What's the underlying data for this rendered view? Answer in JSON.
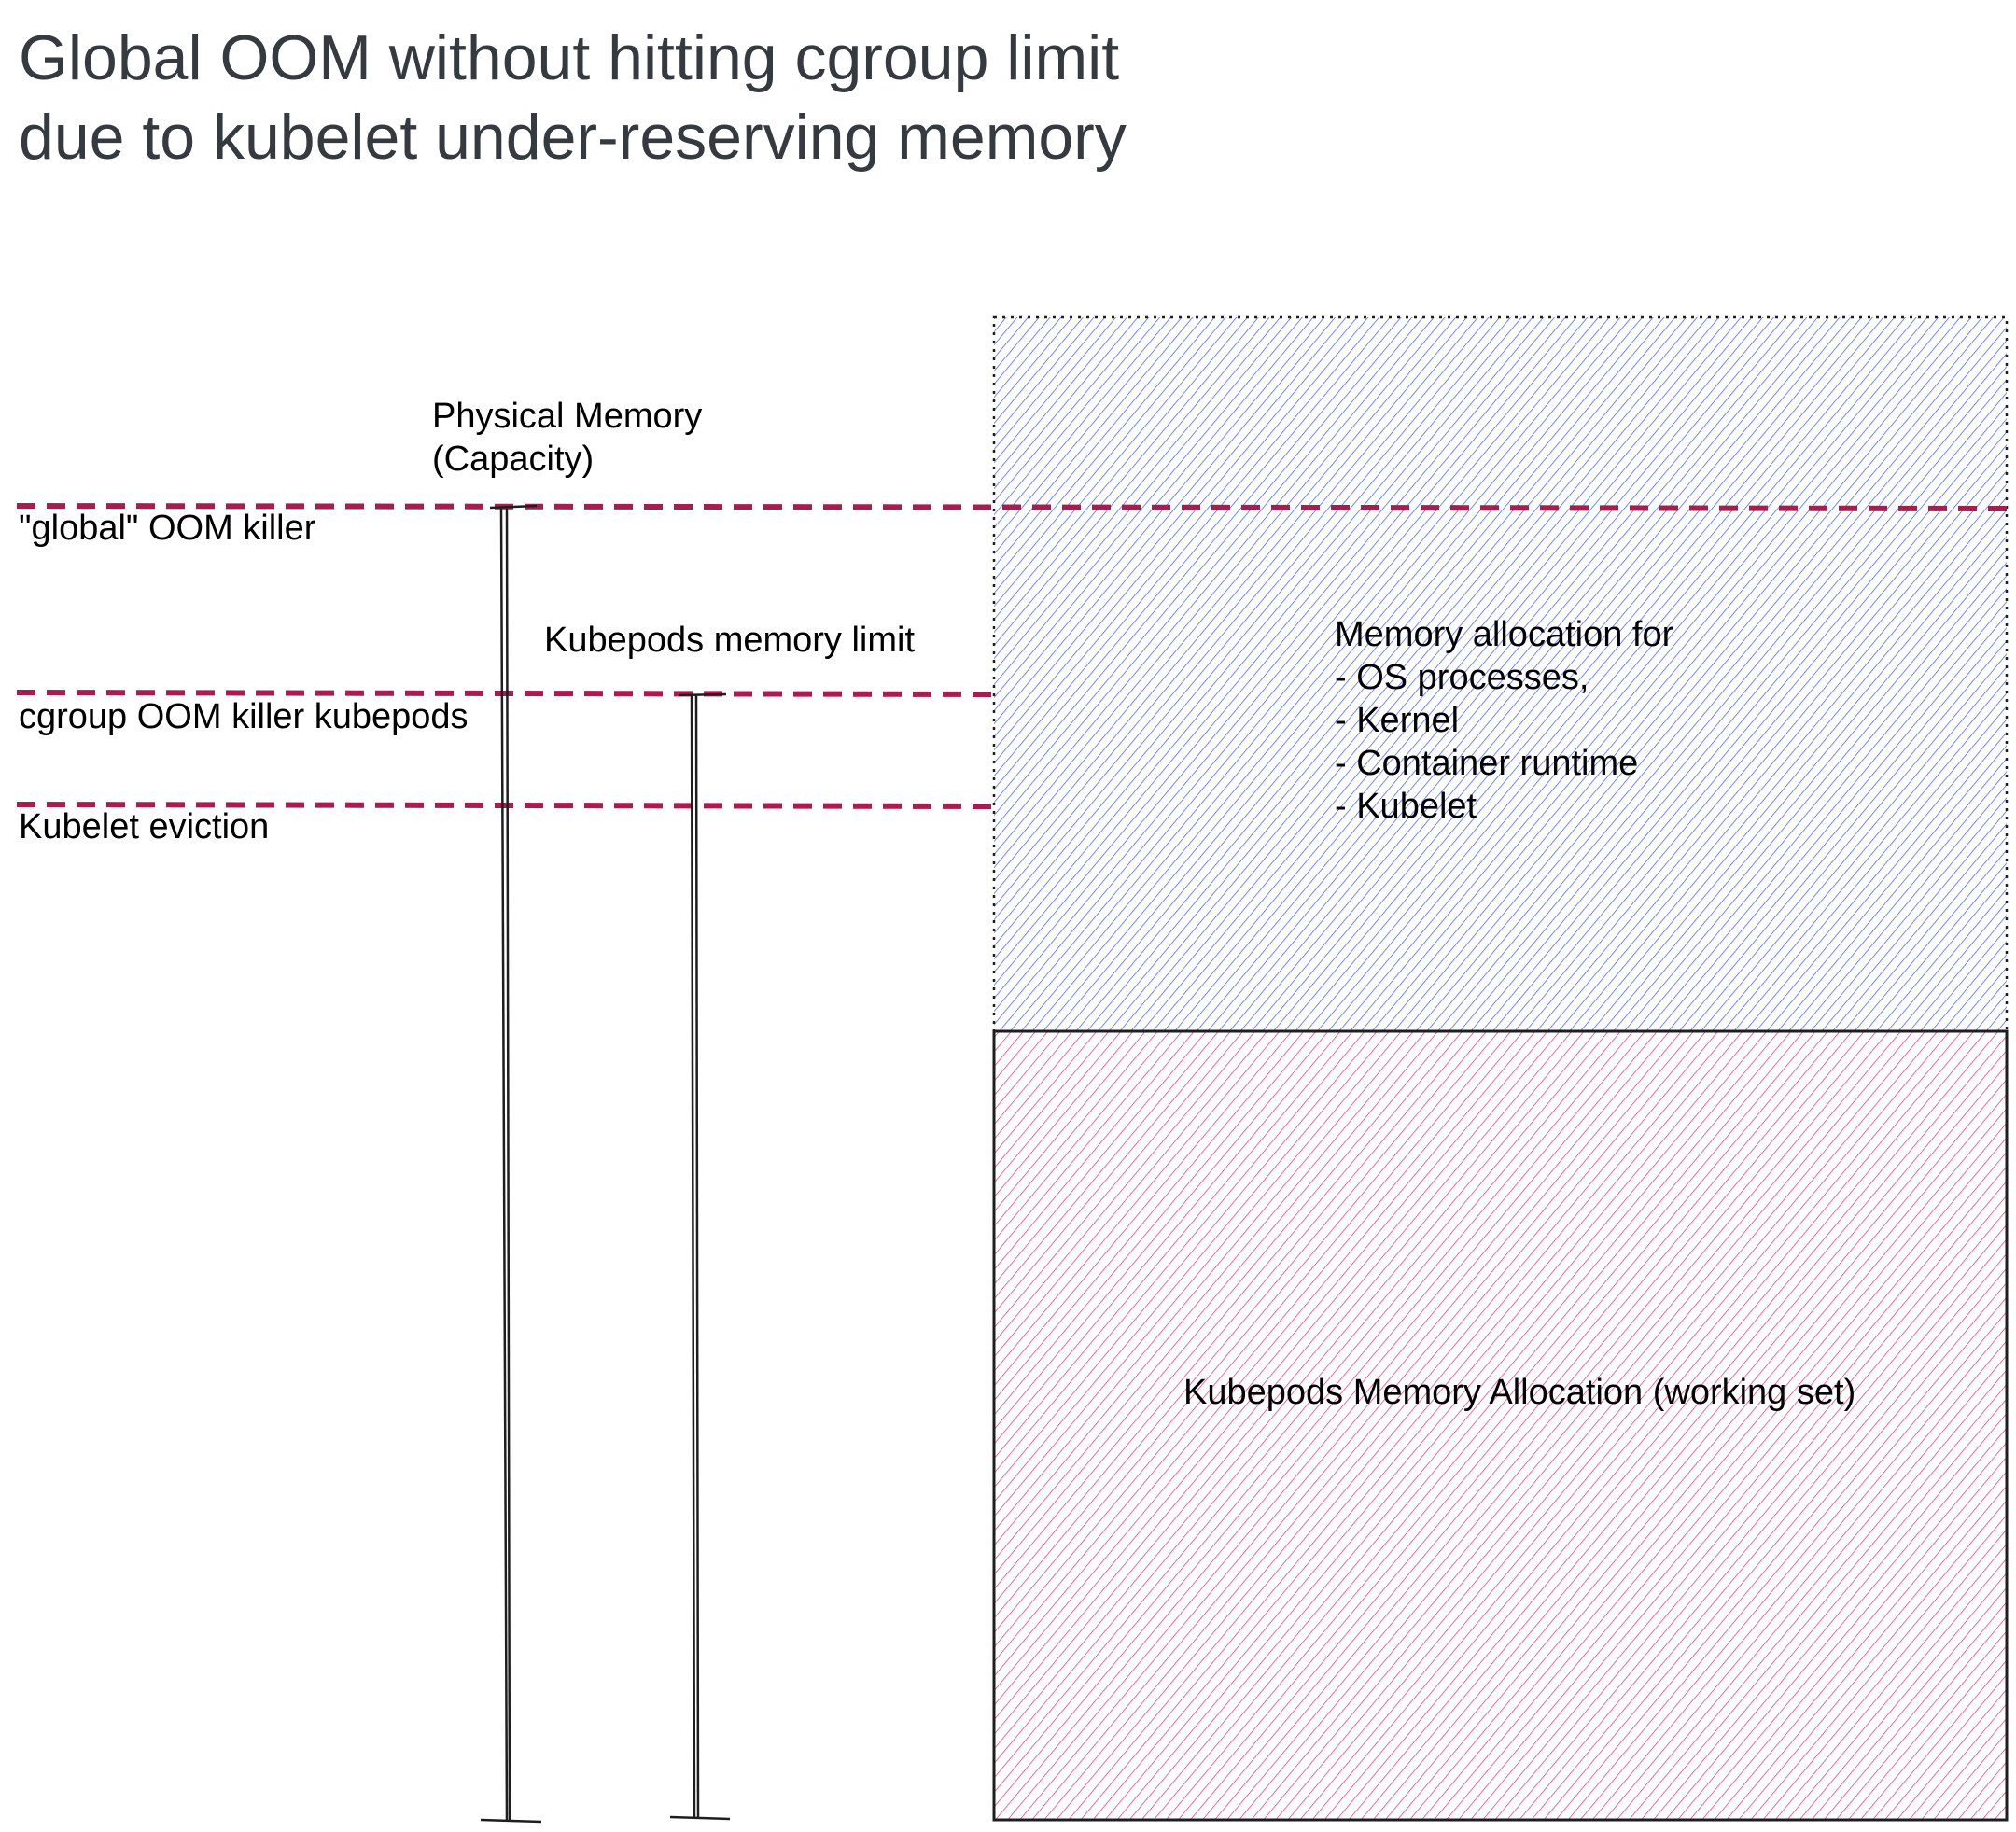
{
  "title": {
    "line1": "Global OOM without hitting cgroup limit",
    "line2": "due to kubelet under-reserving memory"
  },
  "thresholds": {
    "global_oom": "\"global\" OOM killer",
    "cgroup_oom": "cgroup OOM killer kubepods",
    "kubelet_eviction": "Kubelet eviction"
  },
  "measures": {
    "physical_memory": {
      "line1": "Physical Memory",
      "line2": "(Capacity)"
    },
    "kubepods_limit": "Kubepods memory limit"
  },
  "regions": {
    "system": {
      "line1": "Memory allocation for",
      "items": [
        "- OS processes,",
        "- Kernel",
        "- Container runtime",
        "- Kubelet"
      ]
    },
    "kubepods": "Kubepods Memory Allocation (working set)"
  },
  "colors": {
    "title": "#343a40",
    "dashed_line": "#a61e4d",
    "system_hatch": "#4c6ef5",
    "kubepods_hatch": "#e64980",
    "stroke": "#1e1e1e"
  }
}
